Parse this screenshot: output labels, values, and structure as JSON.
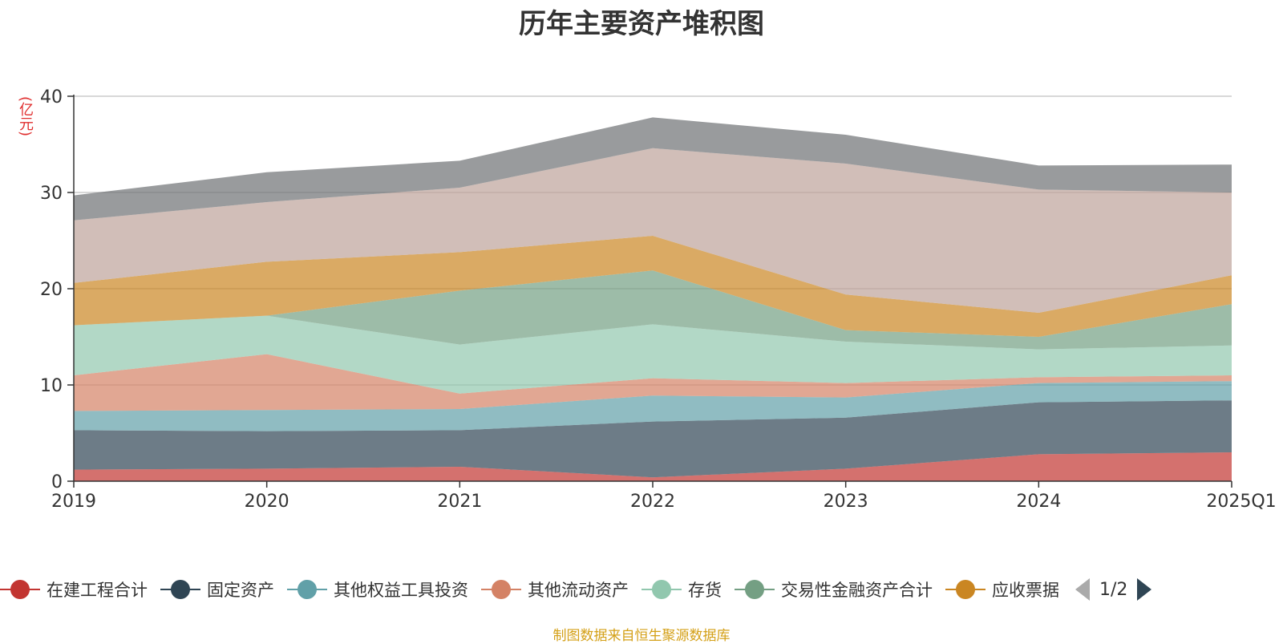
{
  "chart_data": {
    "type": "area",
    "stacked": true,
    "title": "历年主要资产堆积图",
    "unit": "(亿元)",
    "ylim": [
      0,
      40
    ],
    "yticks": [
      0,
      10,
      20,
      30,
      40
    ],
    "grid": true,
    "categories": [
      "2019",
      "2020",
      "2021",
      "2022",
      "2023",
      "2024",
      "2025Q1"
    ],
    "series": [
      {
        "name": "在建工程合计",
        "color": "#c23531",
        "values": [
          1.2,
          1.3,
          1.5,
          0.4,
          1.3,
          2.8,
          3.0
        ]
      },
      {
        "name": "固定资产",
        "color": "#2f4554",
        "values": [
          4.1,
          3.9,
          3.8,
          5.8,
          5.3,
          5.4,
          5.4
        ]
      },
      {
        "name": "其他权益工具投资",
        "color": "#61a0a8",
        "values": [
          2.0,
          2.2,
          2.2,
          2.7,
          2.1,
          2.0,
          2.0
        ]
      },
      {
        "name": "其他流动资产",
        "color": "#d48265",
        "values": [
          3.7,
          5.8,
          1.6,
          1.8,
          1.5,
          0.6,
          0.6
        ]
      },
      {
        "name": "存货",
        "color": "#91c7ae",
        "values": [
          5.2,
          4.0,
          5.1,
          5.6,
          4.3,
          2.9,
          3.1
        ]
      },
      {
        "name": "交易性金融资产合计",
        "color": "#749f83",
        "values": [
          0.0,
          0.0,
          5.6,
          5.6,
          1.2,
          1.3,
          4.3
        ]
      },
      {
        "name": "应收票据",
        "color": "#ca8622",
        "values": [
          4.4,
          5.6,
          4.0,
          3.6,
          3.7,
          2.5,
          3.0
        ]
      },
      {
        "name": "",
        "color": "#bda29a",
        "values": [
          6.5,
          6.2,
          6.7,
          9.1,
          13.6,
          12.8,
          8.6
        ]
      },
      {
        "name": "",
        "color": "#6e7074",
        "values": [
          2.6,
          3.1,
          2.8,
          3.2,
          3.0,
          2.5,
          2.9
        ]
      }
    ],
    "legend_page": "1/2",
    "source": "制图数据来自恒生聚源数据库"
  }
}
